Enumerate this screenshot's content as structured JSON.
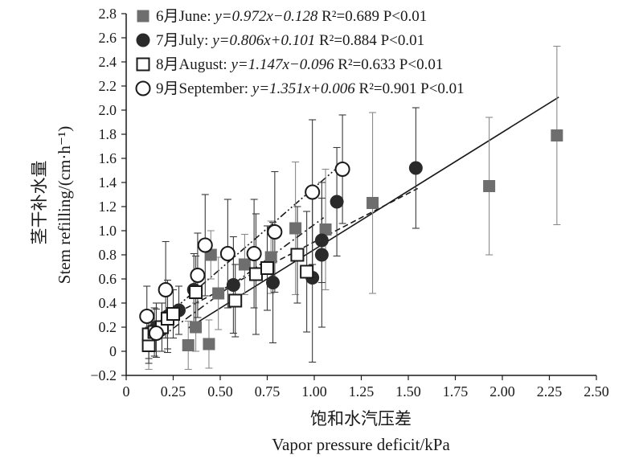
{
  "chart_data": {
    "type": "scatter",
    "xlabel_cn": "饱和水汽压差",
    "xlabel_en": "Vapor pressure deficit/kPa",
    "ylabel_cn": "茎干补水量",
    "ylabel_en": "Stem refilling/(cm·h⁻¹)",
    "xlim": [
      0,
      2.5
    ],
    "ylim": [
      -0.2,
      2.8
    ],
    "x_ticks": [
      "0",
      "0.25",
      "0.50",
      "0.75",
      "1.00",
      "1.25",
      "1.50",
      "1.75",
      "2.00",
      "2.25",
      "2.50"
    ],
    "y_ticks": [
      "−0.2",
      "0",
      "0.2",
      "0.4",
      "0.6",
      "0.8",
      "1.0",
      "1.2",
      "1.4",
      "1.6",
      "1.8",
      "2.0",
      "2.2",
      "2.4",
      "2.6",
      "2.8"
    ],
    "grid": false,
    "legend_position": "top-left",
    "series": [
      {
        "name": "6月June",
        "marker": "square-filled",
        "color": "#6e6e6e",
        "equation": "y=0.972x−0.128",
        "r2": "R²=0.689",
        "p": "P<0.01",
        "fit": [
          0.33,
          2.3
        ],
        "fit_style": "solid",
        "points": [
          {
            "x": 0.12,
            "y": 0.05,
            "err": 0.2
          },
          {
            "x": 0.33,
            "y": 0.05,
            "err": 0.2
          },
          {
            "x": 0.37,
            "y": 0.2,
            "err": 0.2
          },
          {
            "x": 0.44,
            "y": 0.06,
            "err": 0.2
          },
          {
            "x": 0.45,
            "y": 0.8,
            "err": 0.2
          },
          {
            "x": 0.49,
            "y": 0.48,
            "err": 0.3
          },
          {
            "x": 0.63,
            "y": 0.72,
            "err": 0.25
          },
          {
            "x": 0.77,
            "y": 0.78,
            "err": 0.3
          },
          {
            "x": 0.9,
            "y": 1.02,
            "err": 0.55
          },
          {
            "x": 1.06,
            "y": 1.01,
            "err": 0.5
          },
          {
            "x": 1.31,
            "y": 1.23,
            "err": 0.75
          },
          {
            "x": 1.93,
            "y": 1.37,
            "err": 0.57
          },
          {
            "x": 2.29,
            "y": 1.79,
            "err": 0.74
          }
        ]
      },
      {
        "name": "7月July",
        "marker": "circle-filled",
        "color": "#2a2a2a",
        "equation": "y=0.806x+0.101",
        "r2": "R²=0.884",
        "p": "P<0.01",
        "fit": [
          0.15,
          1.55
        ],
        "fit_style": "dashed",
        "points": [
          {
            "x": 0.16,
            "y": 0.2,
            "err": 0.2
          },
          {
            "x": 0.22,
            "y": 0.29,
            "err": 0.3
          },
          {
            "x": 0.28,
            "y": 0.34,
            "err": 0.2
          },
          {
            "x": 0.36,
            "y": 0.51,
            "err": 0.3
          },
          {
            "x": 0.57,
            "y": 0.55,
            "err": 0.4
          },
          {
            "x": 0.78,
            "y": 0.57,
            "err": 0.5
          },
          {
            "x": 0.99,
            "y": 0.61,
            "err": 0.7
          },
          {
            "x": 1.04,
            "y": 0.8,
            "err": 0.6
          },
          {
            "x": 1.04,
            "y": 0.92,
            "err": 0.35
          },
          {
            "x": 1.12,
            "y": 1.24,
            "err": 0.45
          },
          {
            "x": 1.54,
            "y": 1.52,
            "err": 0.5
          }
        ]
      },
      {
        "name": "8月August",
        "marker": "square-open",
        "color": "#1a1a1a",
        "equation": "y=1.147x−0.096",
        "r2": "R²=0.633",
        "p": "P<0.01",
        "fit": [
          0.12,
          1.05
        ],
        "fit_style": "dashdot",
        "points": [
          {
            "x": 0.12,
            "y": 0.05,
            "err": 0.15
          },
          {
            "x": 0.12,
            "y": 0.14,
            "err": 0.2
          },
          {
            "x": 0.15,
            "y": 0.16,
            "err": 0.2
          },
          {
            "x": 0.19,
            "y": 0.2,
            "err": 0.2
          },
          {
            "x": 0.22,
            "y": 0.27,
            "err": 0.25
          },
          {
            "x": 0.25,
            "y": 0.31,
            "err": 0.2
          },
          {
            "x": 0.37,
            "y": 0.49,
            "err": 0.3
          },
          {
            "x": 0.58,
            "y": 0.42,
            "err": 0.3
          },
          {
            "x": 0.69,
            "y": 0.64,
            "err": 0.5
          },
          {
            "x": 0.75,
            "y": 0.69,
            "err": 0.35
          },
          {
            "x": 0.91,
            "y": 0.8,
            "err": 0.4
          },
          {
            "x": 0.96,
            "y": 0.66,
            "err": 0.5
          }
        ]
      },
      {
        "name": "9月September",
        "marker": "circle-open",
        "color": "#1a1a1a",
        "equation": "y=1.351x+0.006",
        "r2": "R²=0.901",
        "p": "P<0.01",
        "fit": [
          0.11,
          1.15
        ],
        "fit_style": "dashdotdot",
        "points": [
          {
            "x": 0.11,
            "y": 0.29,
            "err": 0.25
          },
          {
            "x": 0.16,
            "y": 0.15,
            "err": 0.2
          },
          {
            "x": 0.21,
            "y": 0.51,
            "err": 0.4
          },
          {
            "x": 0.38,
            "y": 0.63,
            "err": 0.35
          },
          {
            "x": 0.42,
            "y": 0.88,
            "err": 0.42
          },
          {
            "x": 0.54,
            "y": 0.81,
            "err": 0.45
          },
          {
            "x": 0.68,
            "y": 0.81,
            "err": 0.45
          },
          {
            "x": 0.79,
            "y": 0.99,
            "err": 0.5
          },
          {
            "x": 0.99,
            "y": 1.32,
            "err": 0.6
          },
          {
            "x": 1.15,
            "y": 1.51,
            "err": 0.45
          }
        ]
      }
    ]
  }
}
